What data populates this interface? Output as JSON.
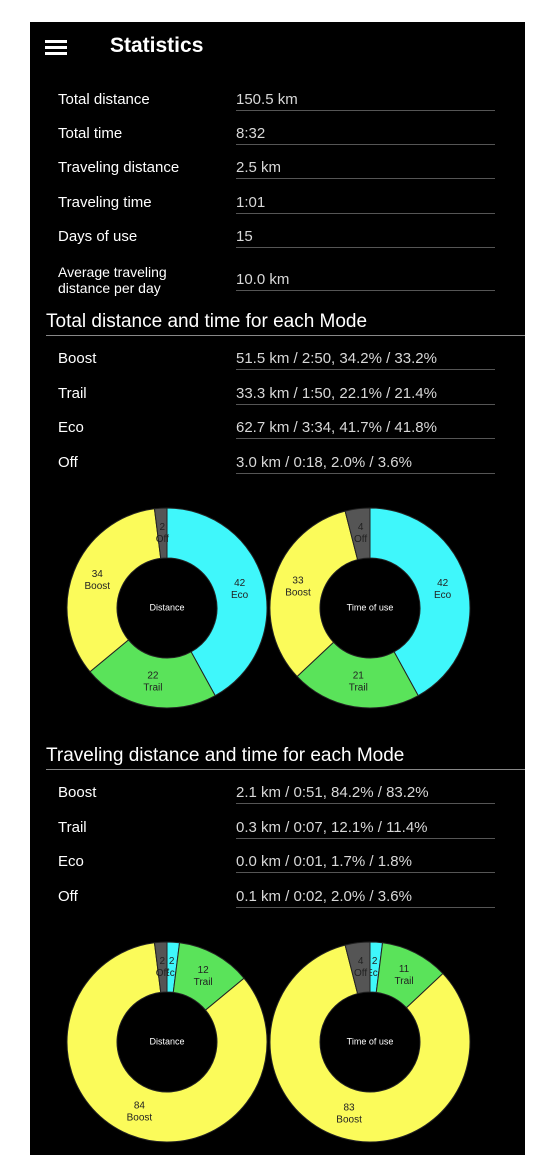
{
  "header": {
    "title": "Statistics"
  },
  "summary": {
    "rows": [
      {
        "label": "Total distance",
        "value": "150.5 km"
      },
      {
        "label": "Total time",
        "value": "8:32"
      },
      {
        "label": "Traveling distance",
        "value": "2.5 km"
      },
      {
        "label": "Traveling time",
        "value": "1:01"
      },
      {
        "label": "Days of use",
        "value": "15"
      },
      {
        "label": "Average traveling distance per day",
        "value": "10.0 km"
      }
    ]
  },
  "sections": [
    {
      "title": "Total distance and time for each Mode",
      "rows": [
        {
          "label": "Boost",
          "value": "51.5 km / 2:50, 34.2% / 33.2%"
        },
        {
          "label": "Trail",
          "value": "33.3 km / 1:50, 22.1% / 21.4%"
        },
        {
          "label": "Eco",
          "value": "62.7 km / 3:34, 41.7% / 41.8%"
        },
        {
          "label": "Off",
          "value": "3.0 km / 0:18, 2.0% / 3.6%"
        }
      ],
      "charts": [
        {
          "type": "donut",
          "center_label": "Distance",
          "slices": [
            {
              "name": "Eco",
              "value": 42,
              "color": "#3ff7fb"
            },
            {
              "name": "Trail",
              "value": 22,
              "color": "#5ae35a"
            },
            {
              "name": "Boost",
              "value": 34,
              "color": "#fbfb5a"
            },
            {
              "name": "Off",
              "value": 2,
              "color": "#555555"
            }
          ]
        },
        {
          "type": "donut",
          "center_label": "Time of use",
          "slices": [
            {
              "name": "Eco",
              "value": 42,
              "color": "#3ff7fb"
            },
            {
              "name": "Trail",
              "value": 21,
              "color": "#5ae35a"
            },
            {
              "name": "Boost",
              "value": 33,
              "color": "#fbfb5a"
            },
            {
              "name": "Off",
              "value": 4,
              "color": "#555555"
            }
          ]
        }
      ]
    },
    {
      "title": "Traveling distance and time for each Mode",
      "rows": [
        {
          "label": "Boost",
          "value": "2.1 km / 0:51, 84.2% / 83.2%"
        },
        {
          "label": "Trail",
          "value": "0.3 km / 0:07, 12.1% / 11.4%"
        },
        {
          "label": "Eco",
          "value": "0.0 km / 0:01, 1.7% / 1.8%"
        },
        {
          "label": "Off",
          "value": "0.1 km / 0:02, 2.0% / 3.6%"
        }
      ],
      "charts": [
        {
          "type": "donut",
          "center_label": "Distance",
          "slices": [
            {
              "name": "Eco",
              "value": 2,
              "color": "#3ff7fb"
            },
            {
              "name": "Trail",
              "value": 12,
              "color": "#5ae35a"
            },
            {
              "name": "Boost",
              "value": 84,
              "color": "#fbfb5a"
            },
            {
              "name": "Off",
              "value": 2,
              "color": "#555555"
            }
          ]
        },
        {
          "type": "donut",
          "center_label": "Time of use",
          "slices": [
            {
              "name": "Eco",
              "value": 2,
              "color": "#3ff7fb"
            },
            {
              "name": "Trail",
              "value": 11,
              "color": "#5ae35a"
            },
            {
              "name": "Boost",
              "value": 83,
              "color": "#fbfb5a"
            },
            {
              "name": "Off",
              "value": 4,
              "color": "#555555"
            }
          ]
        }
      ]
    }
  ]
}
